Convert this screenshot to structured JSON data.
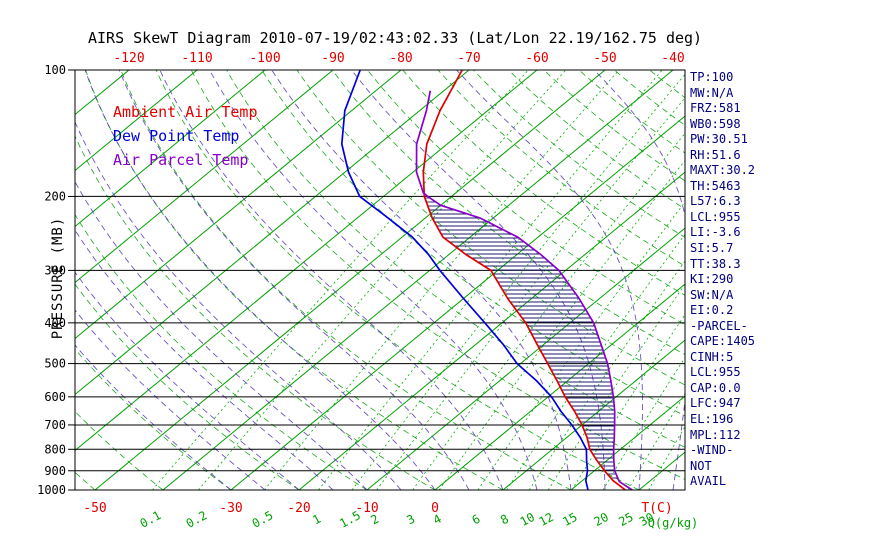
{
  "title": "AIRS SkewT Diagram 2010-07-19/02:43:02.33 (Lat/Lon 22.19/162.75 deg)",
  "colors": {
    "ambient": "#e00000",
    "dewpoint": "#0000dd",
    "parcel": "#8800cc",
    "isotherm": "#00a000",
    "mixing_ratio": "#00b000",
    "dry_adiabat": "#00a000",
    "moist_adiabat": "#5533bb",
    "hatch": "#1e1b6e",
    "pressure_line": "#000000",
    "axis_red": "#e00000",
    "axis_green": "#00a000",
    "stats_text": "#000080"
  },
  "legend": [
    {
      "label": "Ambient Air Temp",
      "color": "#e00000"
    },
    {
      "label": "Dew Point Temp",
      "color": "#0000dd"
    },
    {
      "label": "Air Parcel Temp",
      "color": "#8800cc"
    }
  ],
  "stats": [
    "TP:100",
    "MW:N/A",
    "FRZ:581",
    "WB0:598",
    "PW:30.51",
    "RH:51.6",
    "MAXT:30.2",
    "TH:5463",
    "L57:6.3",
    "LCL:955",
    "LI:-3.6",
    "SI:5.7",
    "TT:38.3",
    "KI:290",
    "SW:N/A",
    "EI:0.2",
    "-PARCEL-",
    "CAPE:1405",
    "CINH:5",
    "LCL:955",
    "CAP:0.0",
    "LFC:947",
    "EL:196",
    "MPL:112",
    "-WIND-",
    "NOT",
    "AVAIL"
  ],
  "chart_data": {
    "type": "line",
    "subtype": "skew-t log-p thermodynamic diagram",
    "title": "AIRS SkewT Diagram 2010-07-19/02:43:02.33 (Lat/Lon 22.19/162.75 deg)",
    "ylabel": "PRESSURE (MB)",
    "xlabel": "T(C)",
    "q_label": "Q(g/kg)",
    "y_scale": "log",
    "pressure_range_mb": [
      100,
      1000
    ],
    "pressure_ticks_mb": [
      100,
      200,
      300,
      400,
      500,
      600,
      700,
      800,
      900,
      1000
    ],
    "top_axis_ticks_c": [
      -120,
      -110,
      -100,
      -90,
      -80,
      -70,
      -60,
      -50,
      -40
    ],
    "bottom_axis_ticks_c": [
      -50,
      -30,
      -20,
      -10,
      0
    ],
    "mixing_ratio_lines_g_kg": [
      0.1,
      0.2,
      0.5,
      1,
      1.5,
      2,
      3,
      4,
      6,
      8,
      10,
      12,
      15,
      20,
      25,
      30
    ],
    "isotherms_c": {
      "min": -120,
      "max": 30,
      "step": 10
    },
    "dry_adiabats_theta_c": {
      "min": -50,
      "max": 180,
      "step": 10
    },
    "moist_adiabats_t1000_c": {
      "min": -30,
      "max": 35,
      "step": 5
    },
    "cape_hatch_pressure_range_mb": [
      197,
      944
    ],
    "series": [
      {
        "name": "Ambient Air Temp",
        "color": "#e00000",
        "points_p_mb_t_c": [
          [
            100,
            -71
          ],
          [
            125,
            -67
          ],
          [
            150,
            -63
          ],
          [
            175,
            -58.5
          ],
          [
            200,
            -54
          ],
          [
            225,
            -49
          ],
          [
            250,
            -44
          ],
          [
            275,
            -37.5
          ],
          [
            300,
            -31
          ],
          [
            350,
            -23.5
          ],
          [
            400,
            -16.5
          ],
          [
            450,
            -11
          ],
          [
            500,
            -6
          ],
          [
            550,
            -1.5
          ],
          [
            600,
            2.5
          ],
          [
            650,
            6.5
          ],
          [
            700,
            10
          ],
          [
            750,
            13
          ],
          [
            800,
            15.5
          ],
          [
            850,
            18.5
          ],
          [
            900,
            21.5
          ],
          [
            950,
            24.5
          ],
          [
            1000,
            28
          ]
        ]
      },
      {
        "name": "Dew Point Temp",
        "color": "#0000dd",
        "points_p_mb_t_c": [
          [
            100,
            -86
          ],
          [
            125,
            -81
          ],
          [
            150,
            -75.5
          ],
          [
            175,
            -69.5
          ],
          [
            200,
            -63.5
          ],
          [
            225,
            -55.5
          ],
          [
            250,
            -48.5
          ],
          [
            275,
            -43
          ],
          [
            300,
            -38.5
          ],
          [
            350,
            -30
          ],
          [
            400,
            -22.5
          ],
          [
            450,
            -16
          ],
          [
            500,
            -10.5
          ],
          [
            550,
            -4.5
          ],
          [
            600,
            0.5
          ],
          [
            650,
            4.5
          ],
          [
            700,
            8.5
          ],
          [
            750,
            12
          ],
          [
            800,
            15
          ],
          [
            850,
            17
          ],
          [
            900,
            19
          ],
          [
            950,
            20.5
          ],
          [
            1000,
            22.5
          ]
        ]
      },
      {
        "name": "Air Parcel Temp",
        "color": "#8800cc",
        "points_p_mb_t_c": [
          [
            112,
            -72
          ],
          [
            125,
            -69
          ],
          [
            150,
            -64.5
          ],
          [
            175,
            -59.5
          ],
          [
            196,
            -54.8
          ],
          [
            200,
            -53.5
          ],
          [
            210,
            -50
          ],
          [
            225,
            -42
          ],
          [
            250,
            -33
          ],
          [
            275,
            -26.5
          ],
          [
            300,
            -21
          ],
          [
            350,
            -13
          ],
          [
            400,
            -6.5
          ],
          [
            450,
            -1.6
          ],
          [
            500,
            2.8
          ],
          [
            550,
            6.4
          ],
          [
            600,
            9.6
          ],
          [
            650,
            12.4
          ],
          [
            700,
            14.8
          ],
          [
            750,
            17
          ],
          [
            800,
            19
          ],
          [
            850,
            21
          ],
          [
            900,
            23
          ],
          [
            955,
            25.6
          ],
          [
            1000,
            29
          ]
        ]
      }
    ]
  }
}
